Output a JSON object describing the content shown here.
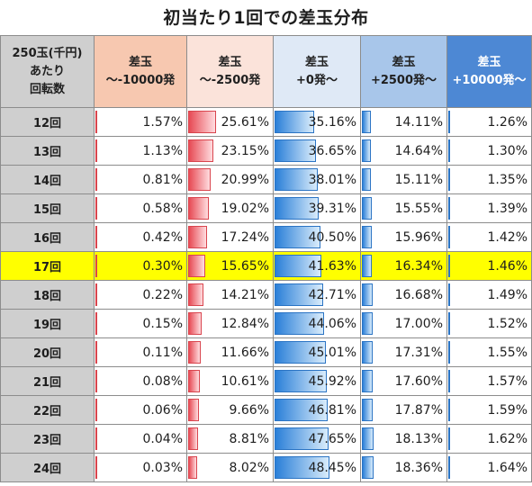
{
  "title": "初当たり1回での差玉分布",
  "header": {
    "label_col": [
      "250玉(千円)",
      "あたり",
      "回転数"
    ],
    "columns": [
      [
        "差玉",
        "～-10000発"
      ],
      [
        "差玉",
        "～-2500発"
      ],
      [
        "差玉",
        "+0発～"
      ],
      [
        "差玉",
        "+2500発～"
      ],
      [
        "差玉",
        "+10000発～"
      ]
    ]
  },
  "highlight_row": "17回",
  "colors": {
    "highlight": "#ffff00",
    "red_bar": "#e74a54",
    "blue_bar": "#2a7fd8"
  },
  "rows": [
    {
      "label": "12回",
      "cells": [
        {
          "text": "1.57%",
          "v": 1.57
        },
        {
          "text": "25.61%",
          "v": 25.61
        },
        {
          "text": "35.16%",
          "v": 35.16
        },
        {
          "text": "14.11%",
          "v": 14.11
        },
        {
          "text": "1.26%",
          "v": 1.26
        }
      ]
    },
    {
      "label": "13回",
      "cells": [
        {
          "text": "1.13%",
          "v": 1.13
        },
        {
          "text": "23.15%",
          "v": 23.15
        },
        {
          "text": "36.65%",
          "v": 36.65
        },
        {
          "text": "14.64%",
          "v": 14.64
        },
        {
          "text": "1.30%",
          "v": 1.3
        }
      ]
    },
    {
      "label": "14回",
      "cells": [
        {
          "text": "0.81%",
          "v": 0.81
        },
        {
          "text": "20.99%",
          "v": 20.99
        },
        {
          "text": "38.01%",
          "v": 38.01
        },
        {
          "text": "15.11%",
          "v": 15.11
        },
        {
          "text": "1.35%",
          "v": 1.35
        }
      ]
    },
    {
      "label": "15回",
      "cells": [
        {
          "text": "0.58%",
          "v": 0.58
        },
        {
          "text": "19.02%",
          "v": 19.02
        },
        {
          "text": "39.31%",
          "v": 39.31
        },
        {
          "text": "15.55%",
          "v": 15.55
        },
        {
          "text": "1.39%",
          "v": 1.39
        }
      ]
    },
    {
      "label": "16回",
      "cells": [
        {
          "text": "0.42%",
          "v": 0.42
        },
        {
          "text": "17.24%",
          "v": 17.24
        },
        {
          "text": "40.50%",
          "v": 40.5
        },
        {
          "text": "15.96%",
          "v": 15.96
        },
        {
          "text": "1.42%",
          "v": 1.42
        }
      ]
    },
    {
      "label": "17回",
      "cells": [
        {
          "text": "0.30%",
          "v": 0.3
        },
        {
          "text": "15.65%",
          "v": 15.65
        },
        {
          "text": "41.63%",
          "v": 41.63
        },
        {
          "text": "16.34%",
          "v": 16.34
        },
        {
          "text": "1.46%",
          "v": 1.46
        }
      ]
    },
    {
      "label": "18回",
      "cells": [
        {
          "text": "0.22%",
          "v": 0.22
        },
        {
          "text": "14.21%",
          "v": 14.21
        },
        {
          "text": "42.71%",
          "v": 42.71
        },
        {
          "text": "16.68%",
          "v": 16.68
        },
        {
          "text": "1.49%",
          "v": 1.49
        }
      ]
    },
    {
      "label": "19回",
      "cells": [
        {
          "text": "0.15%",
          "v": 0.15
        },
        {
          "text": "12.84%",
          "v": 12.84
        },
        {
          "text": "44.06%",
          "v": 44.06
        },
        {
          "text": "17.00%",
          "v": 17.0
        },
        {
          "text": "1.52%",
          "v": 1.52
        }
      ]
    },
    {
      "label": "20回",
      "cells": [
        {
          "text": "0.11%",
          "v": 0.11
        },
        {
          "text": "11.66%",
          "v": 11.66
        },
        {
          "text": "45.01%",
          "v": 45.01
        },
        {
          "text": "17.31%",
          "v": 17.31
        },
        {
          "text": "1.55%",
          "v": 1.55
        }
      ]
    },
    {
      "label": "21回",
      "cells": [
        {
          "text": "0.08%",
          "v": 0.08
        },
        {
          "text": "10.61%",
          "v": 10.61
        },
        {
          "text": "45.92%",
          "v": 45.92
        },
        {
          "text": "17.60%",
          "v": 17.6
        },
        {
          "text": "1.57%",
          "v": 1.57
        }
      ]
    },
    {
      "label": "22回",
      "cells": [
        {
          "text": "0.06%",
          "v": 0.06
        },
        {
          "text": "9.66%",
          "v": 9.66
        },
        {
          "text": "46.81%",
          "v": 46.81
        },
        {
          "text": "17.87%",
          "v": 17.87
        },
        {
          "text": "1.59%",
          "v": 1.59
        }
      ]
    },
    {
      "label": "23回",
      "cells": [
        {
          "text": "0.04%",
          "v": 0.04
        },
        {
          "text": "8.81%",
          "v": 8.81
        },
        {
          "text": "47.65%",
          "v": 47.65
        },
        {
          "text": "18.13%",
          "v": 18.13
        },
        {
          "text": "1.62%",
          "v": 1.62
        }
      ]
    },
    {
      "label": "24回",
      "cells": [
        {
          "text": "0.03%",
          "v": 0.03
        },
        {
          "text": "8.02%",
          "v": 8.02
        },
        {
          "text": "48.45%",
          "v": 48.45
        },
        {
          "text": "18.36%",
          "v": 18.36
        },
        {
          "text": "1.64%",
          "v": 1.64
        }
      ]
    }
  ]
}
